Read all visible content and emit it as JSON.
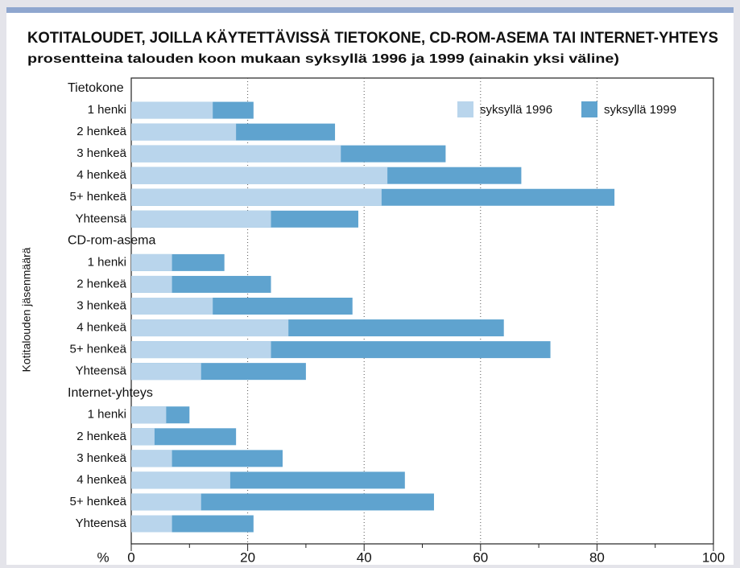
{
  "chart_data": {
    "type": "bar",
    "title": "KOTITALOUDET, JOILLA KÄYTETTÄVISSÄ TIETOKONE, CD-ROM-ASEMA TAI INTERNET-YHTEYS",
    "subtitle": "prosentteina talouden koon mukaan syksyllä 1996 ja 1999 (ainakin yksi väline)",
    "ylabel": "Kotitalouden jäsenmäärä",
    "xlabel": "%",
    "categories": [
      "Tietokone",
      "1 henki",
      "2 henkeä",
      "3 henkeä",
      "4 henkeä",
      "5+ henkeä",
      "Yhteensä",
      "CD-rom-asema",
      "1 henki",
      "2 henkeä",
      "3 henkeä",
      "4 henkeä",
      "5+ henkeä",
      "Yhteensä",
      "Internet-yhteys",
      "1 henki",
      "2 henkeä",
      "3 henkeä",
      "4 henkeä",
      "5+ henkeä",
      "Yhteensä"
    ],
    "series": [
      {
        "name": "syksyllä 1999",
        "color": "#5fa3cf",
        "values": [
          null,
          21,
          35,
          54,
          67,
          83,
          39,
          null,
          16,
          24,
          38,
          64,
          72,
          30,
          null,
          10,
          18,
          26,
          47,
          52,
          21
        ]
      },
      {
        "name": "syksyllä 1996",
        "color": "#b9d5ec",
        "values": [
          null,
          14,
          18,
          36,
          44,
          43,
          24,
          null,
          7,
          7,
          14,
          27,
          24,
          12,
          null,
          6,
          4,
          7,
          17,
          12,
          7
        ]
      }
    ],
    "xlim": [
      0,
      100
    ],
    "xticks": [
      0,
      20,
      40,
      60,
      80,
      100
    ],
    "grid": true
  }
}
